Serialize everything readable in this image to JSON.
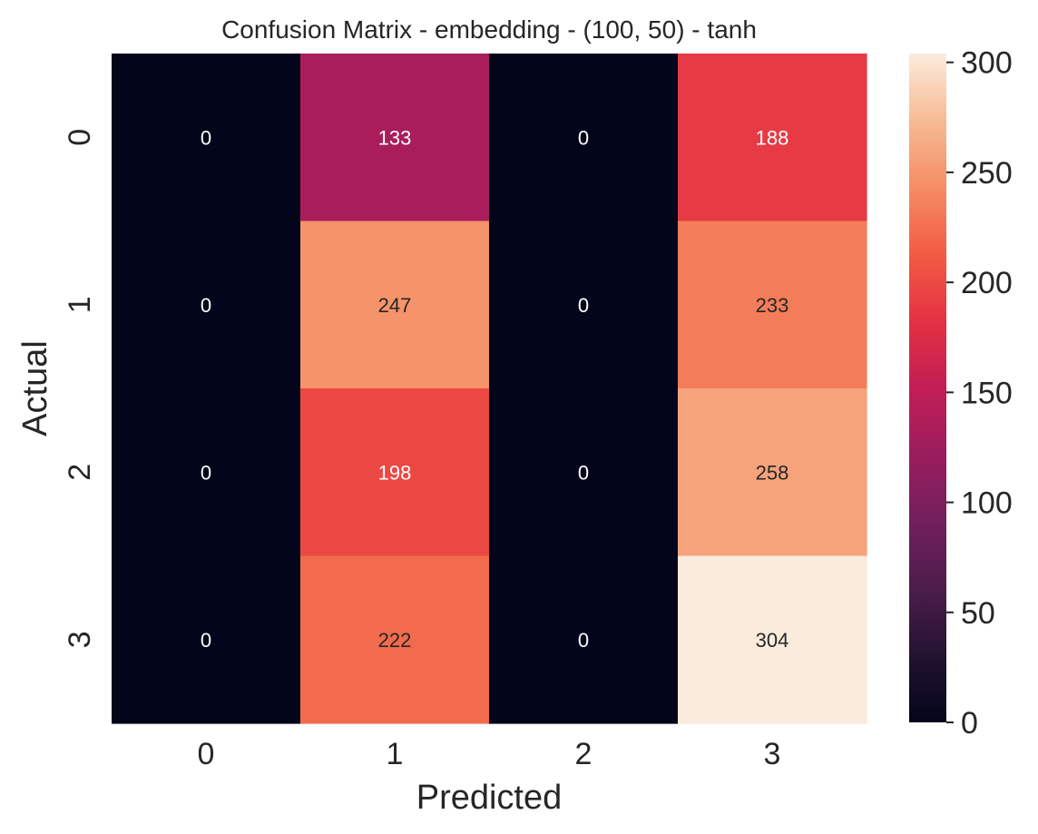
{
  "chart_data": {
    "type": "heatmap",
    "title": "Confusion Matrix - embedding - (100, 50) - tanh",
    "xlabel": "Predicted",
    "ylabel": "Actual",
    "x_categories": [
      "0",
      "1",
      "2",
      "3"
    ],
    "y_categories": [
      "0",
      "1",
      "2",
      "3"
    ],
    "values": [
      [
        0,
        133,
        0,
        188
      ],
      [
        0,
        247,
        0,
        233
      ],
      [
        0,
        198,
        0,
        258
      ],
      [
        0,
        222,
        0,
        304
      ]
    ],
    "colorbar": {
      "min": 0,
      "max": 304,
      "ticks": [
        0,
        50,
        100,
        150,
        200,
        250,
        300
      ],
      "colormap": "rocket"
    }
  }
}
